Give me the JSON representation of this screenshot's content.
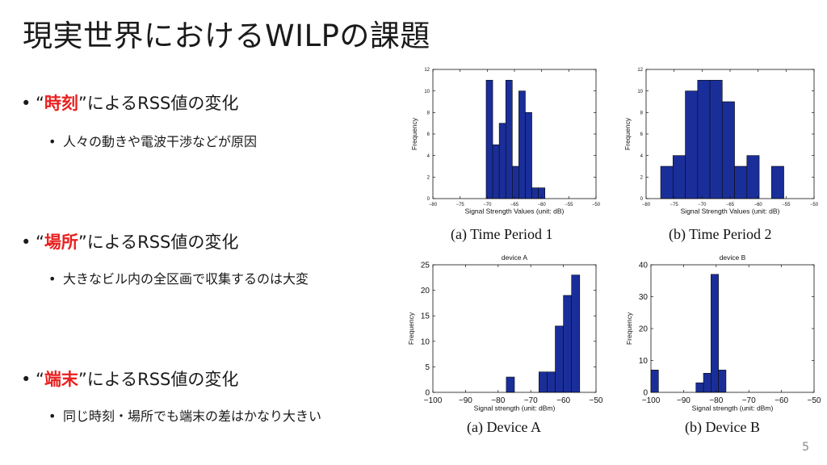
{
  "slide": {
    "title": "現実世界におけるWILPの課題",
    "page_number": "5",
    "bullets": [
      {
        "open_quote": "“",
        "highlight": "時刻",
        "rest": "”によるRSS値の変化",
        "sub": "人々の動きや電波干渉などが原因"
      },
      {
        "open_quote": "“",
        "highlight": "場所",
        "rest": "”によるRSS値の変化",
        "sub": "大きなビル内の全区画で収集するのは大変"
      },
      {
        "open_quote": "“",
        "highlight": "端末",
        "rest": "”によるRSS値の変化",
        "sub": "同じ時刻・場所でも端末の差はかなり大きい"
      }
    ],
    "bullet_symbol": "•",
    "sub_symbol": "•",
    "highlight_color": "#e8201f"
  },
  "figures": {
    "captions": [
      "(a)  Time Period 1",
      "(b)  Time Period 2",
      "(a)  Device A",
      "(b)  Device B"
    ],
    "bar_color": "#1a2e9a"
  },
  "chart_data": [
    {
      "type": "bar",
      "title": "",
      "xlabel": "Signal Strength Values (unit: dB)",
      "ylabel": "Frequency",
      "xlim": [
        -80,
        -50
      ],
      "ylim": [
        0,
        12
      ],
      "xticks": [
        -80,
        -75,
        -70,
        -65,
        -60,
        -55,
        -50
      ],
      "yticks": [
        0,
        2,
        4,
        6,
        8,
        10,
        12
      ],
      "bin_width": 1.2,
      "bins": [
        {
          "x": -70.2,
          "value": 11
        },
        {
          "x": -69.0,
          "value": 5
        },
        {
          "x": -67.8,
          "value": 7
        },
        {
          "x": -66.6,
          "value": 11
        },
        {
          "x": -65.4,
          "value": 3
        },
        {
          "x": -64.2,
          "value": 10
        },
        {
          "x": -63.0,
          "value": 8
        },
        {
          "x": -61.8,
          "value": 1
        },
        {
          "x": -60.6,
          "value": 1
        }
      ],
      "grid": false
    },
    {
      "type": "bar",
      "title": "",
      "xlabel": "Signal Strength Values (unit: dB)",
      "ylabel": "Frequency",
      "xlim": [
        -80,
        -50
      ],
      "ylim": [
        0,
        12
      ],
      "xticks": [
        -80,
        -75,
        -70,
        -65,
        -60,
        -55,
        -50
      ],
      "yticks": [
        0,
        2,
        4,
        6,
        8,
        10,
        12
      ],
      "bin_width": 2.2,
      "bins": [
        {
          "x": -77.4,
          "value": 3
        },
        {
          "x": -75.2,
          "value": 4
        },
        {
          "x": -73.0,
          "value": 10
        },
        {
          "x": -70.8,
          "value": 11
        },
        {
          "x": -68.6,
          "value": 11
        },
        {
          "x": -66.4,
          "value": 9
        },
        {
          "x": -64.2,
          "value": 3
        },
        {
          "x": -62.0,
          "value": 4
        },
        {
          "x": -57.6,
          "value": 3
        }
      ],
      "grid": false
    },
    {
      "type": "bar",
      "title": "device A",
      "xlabel": "Signal strength (unit: dBm)",
      "ylabel": "Frequency",
      "xlim": [
        -100,
        -50
      ],
      "ylim": [
        0,
        25
      ],
      "xticks": [
        -100,
        -90,
        -80,
        -70,
        -60,
        -50
      ],
      "yticks": [
        0,
        5,
        10,
        15,
        20,
        25
      ],
      "bin_width": 2.5,
      "bins": [
        {
          "x": -77.5,
          "value": 3
        },
        {
          "x": -67.5,
          "value": 4
        },
        {
          "x": -65.0,
          "value": 4
        },
        {
          "x": -62.5,
          "value": 13
        },
        {
          "x": -60.0,
          "value": 19
        },
        {
          "x": -57.5,
          "value": 23
        }
      ],
      "grid": false
    },
    {
      "type": "bar",
      "title": "device B",
      "xlabel": "Signal strength (unit: dBm)",
      "ylabel": "Frequency",
      "xlim": [
        -100,
        -50
      ],
      "ylim": [
        0,
        40
      ],
      "xticks": [
        -100,
        -90,
        -80,
        -70,
        -60,
        -50
      ],
      "yticks": [
        0,
        10,
        20,
        30,
        40
      ],
      "bin_width": 2.3,
      "bins": [
        {
          "x": -100.0,
          "value": 7
        },
        {
          "x": -86.2,
          "value": 3
        },
        {
          "x": -83.9,
          "value": 6
        },
        {
          "x": -81.6,
          "value": 37
        },
        {
          "x": -79.3,
          "value": 7
        }
      ],
      "grid": false
    }
  ]
}
